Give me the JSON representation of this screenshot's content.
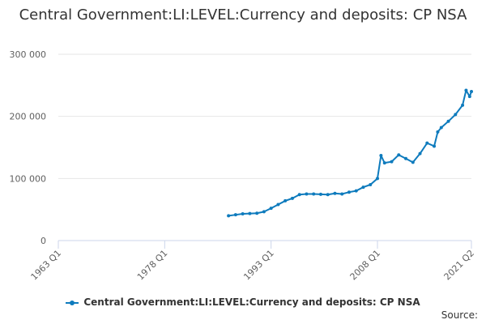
{
  "chart_data": {
    "type": "line",
    "title": "Central Government:LI:LEVEL:Currency and deposits: CP NSA",
    "xlabel": "",
    "ylabel": "",
    "x_tick_labels": [
      "1963 Q1",
      "1978 Q1",
      "1993 Q1",
      "2008 Q1",
      "2021 Q2"
    ],
    "y_tick_labels": [
      "0",
      "100 000",
      "200 000",
      "300 000"
    ],
    "ylim": [
      0,
      300000
    ],
    "xlim": [
      "1963 Q1",
      "2021 Q2"
    ],
    "grid": true,
    "legend_position": "bottom",
    "series": [
      {
        "name": "Central Government:LI:LEVEL:Currency and deposits: CP NSA",
        "color": "#0e7bbd",
        "points": [
          [
            "1987 Q1",
            40000
          ],
          [
            "1988 Q1",
            41500
          ],
          [
            "1989 Q1",
            43000
          ],
          [
            "1990 Q1",
            43500
          ],
          [
            "1991 Q1",
            44000
          ],
          [
            "1992 Q1",
            46500
          ],
          [
            "1993 Q1",
            52000
          ],
          [
            "1994 Q1",
            58000
          ],
          [
            "1995 Q1",
            64000
          ],
          [
            "1996 Q1",
            68000
          ],
          [
            "1997 Q1",
            74000
          ],
          [
            "1998 Q1",
            75000
          ],
          [
            "1999 Q1",
            75000
          ],
          [
            "2000 Q1",
            74500
          ],
          [
            "2001 Q1",
            74000
          ],
          [
            "2002 Q1",
            76000
          ],
          [
            "2003 Q1",
            75000
          ],
          [
            "2004 Q1",
            78000
          ],
          [
            "2005 Q1",
            80000
          ],
          [
            "2006 Q1",
            86000
          ],
          [
            "2007 Q1",
            90000
          ],
          [
            "2008 Q1",
            100000
          ],
          [
            "2008 Q3",
            137000
          ],
          [
            "2009 Q1",
            125000
          ],
          [
            "2010 Q1",
            127000
          ],
          [
            "2011 Q1",
            138000
          ],
          [
            "2012 Q1",
            132000
          ],
          [
            "2013 Q1",
            126000
          ],
          [
            "2014 Q1",
            140000
          ],
          [
            "2015 Q1",
            157000
          ],
          [
            "2016 Q1",
            152000
          ],
          [
            "2016 Q3",
            175000
          ],
          [
            "2017 Q1",
            182000
          ],
          [
            "2018 Q1",
            192000
          ],
          [
            "2019 Q1",
            203000
          ],
          [
            "2020 Q1",
            218000
          ],
          [
            "2020 Q3",
            242000
          ],
          [
            "2021 Q1",
            232000
          ],
          [
            "2021 Q2",
            240000
          ]
        ]
      }
    ]
  },
  "legend": {
    "label": "Central Government:LI:LEVEL:Currency and deposits: CP NSA"
  },
  "credit": "Source:"
}
